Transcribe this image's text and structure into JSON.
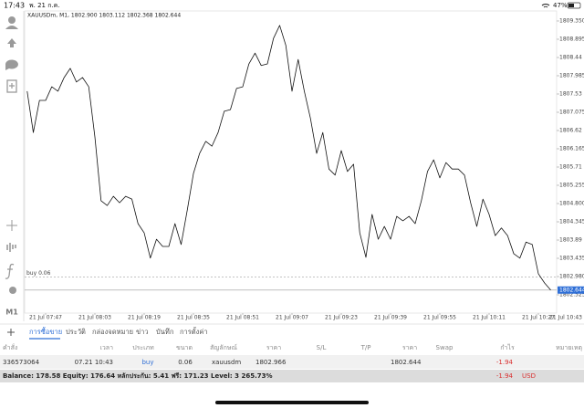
{
  "status_bar": {
    "time": "17:43",
    "date": "พ. 21 ก.ค.",
    "battery": "47%"
  },
  "chart_data": {
    "type": "line",
    "title": "XAUUSDm, M1, 1802.900 1803.112 1802.368 1802.644",
    "color": "#111111",
    "categories": [
      null,
      null,
      null,
      "21 Jul 07:47",
      null,
      null,
      null,
      null,
      null,
      null,
      null,
      "21 Jul 08:03",
      null,
      null,
      null,
      null,
      null,
      null,
      null,
      "21 Jul 08:19",
      null,
      null,
      null,
      null,
      null,
      null,
      null,
      "21 Jul 08:35",
      null,
      null,
      null,
      null,
      null,
      null,
      null,
      "21 Jul 08:51",
      null,
      null,
      null,
      null,
      null,
      null,
      null,
      "21 Jul 09:07",
      null,
      null,
      null,
      null,
      null,
      null,
      null,
      "21 Jul 09:23",
      null,
      null,
      null,
      null,
      null,
      null,
      null,
      "21 Jul 09:39",
      null,
      null,
      null,
      null,
      null,
      null,
      null,
      "21 Jul 09:55",
      null,
      null,
      null,
      null,
      null,
      null,
      null,
      "21 Jul 10:11",
      null,
      null,
      null,
      null,
      null,
      null,
      null,
      "21 Jul 10:27",
      null,
      null
    ],
    "values": [
      1807.6,
      1806.57,
      1807.37,
      1807.37,
      1807.71,
      1807.6,
      1807.94,
      1808.17,
      1807.83,
      1807.94,
      1807.71,
      1806.46,
      1804.87,
      1804.75,
      1804.98,
      1804.82,
      1804.98,
      1804.91,
      1804.3,
      1804.07,
      1803.44,
      1803.91,
      1803.73,
      1803.73,
      1804.3,
      1803.78,
      1804.64,
      1805.55,
      1806.05,
      1806.35,
      1806.23,
      1806.57,
      1807.1,
      1807.14,
      1807.67,
      1807.71,
      1808.28,
      1808.55,
      1808.24,
      1808.28,
      1808.92,
      1809.24,
      1808.74,
      1807.6,
      1808.39,
      1807.6,
      1806.92,
      1806.05,
      1806.57,
      1805.66,
      1805.51,
      1806.12,
      1805.6,
      1805.78,
      1804.07,
      1803.46,
      1804.53,
      1803.91,
      1804.23,
      1803.91,
      1804.48,
      1804.37,
      1804.48,
      1804.3,
      1804.87,
      1805.6,
      1805.89,
      1805.44,
      1805.82,
      1805.66,
      1805.66,
      1805.51,
      1804.82,
      1804.23,
      1804.91,
      1804.53,
      1804.0,
      1804.19,
      1804.0,
      1803.55,
      1803.44,
      1803.84,
      1803.78,
      1803.05,
      1802.82,
      1802.644
    ],
    "x_end_label": "21 Jul 10:43",
    "ylim": [
      1802.07,
      1809.6
    ],
    "yticks": [
      {
        "value": 1809.35,
        "label": "1809.350"
      },
      1808.895,
      1808.44,
      1807.985,
      1807.53,
      1807.075,
      1806.62,
      1806.165,
      1805.71,
      1805.255,
      {
        "value": 1804.8,
        "label": "1804.800"
      },
      1804.345,
      1803.89,
      1803.435,
      {
        "value": 1802.98,
        "label": "1802.980"
      },
      1802.525
    ],
    "order_line": {
      "label": "buy 0.06",
      "value": 1802.966
    },
    "price_tag": 1802.644,
    "price_tag_color": "#2f6fd6"
  },
  "timeframe": "M1",
  "tabs": [
    "การซื้อขาย",
    "ประวัติ",
    "กล่องจดหมาย",
    "ข่าว",
    "บันทึก",
    "การตั้งค่า"
  ],
  "table": {
    "headers": [
      "คำสั่ง",
      "เวลา",
      "ประเภท",
      "ขนาด",
      "สัญลักษณ์",
      "ราคา",
      "S/L",
      "T/P",
      "ราคา",
      "Swap",
      "กำไร",
      "หมายเหตุ"
    ],
    "row": {
      "order": "336573064",
      "time": "07.21 10:43",
      "type": "buy",
      "volume": "0.06",
      "symbol": "xauusdm",
      "open_price": "1802.966",
      "price": "1802.644",
      "profit": "-1.94"
    }
  },
  "balance": {
    "text": "Balance: 178.58 Equity: 176.64 หลักประกัน: 5.41 ฟรี: 171.23 Level: 3 265.73%",
    "profit": "-1.94",
    "currency": "USD"
  }
}
